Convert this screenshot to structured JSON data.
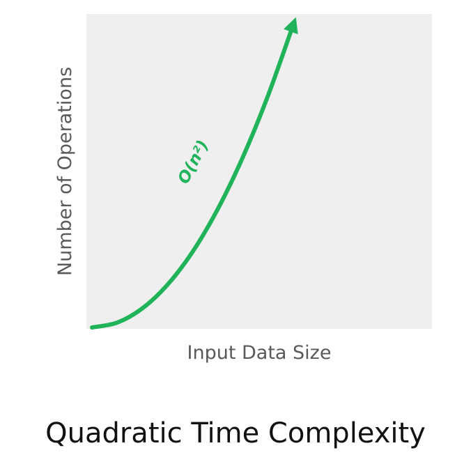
{
  "chart_data": {
    "type": "line",
    "xlabel": "Input Data Size",
    "ylabel": "Number of Operations",
    "curve_label": "O(n²)",
    "caption": "Quadratic Time Complexity",
    "x": [
      0,
      0.125,
      0.25,
      0.375,
      0.5,
      0.625,
      0.75,
      0.875,
      1
    ],
    "y": [
      0,
      0.016,
      0.063,
      0.141,
      0.25,
      0.391,
      0.563,
      0.766,
      1
    ],
    "ticks": "none",
    "grid": false,
    "arrowhead": true,
    "colors": {
      "plot_background": "#efefef",
      "curve": "#20b35a",
      "axis_label": "#595959",
      "caption": "#111111"
    }
  }
}
